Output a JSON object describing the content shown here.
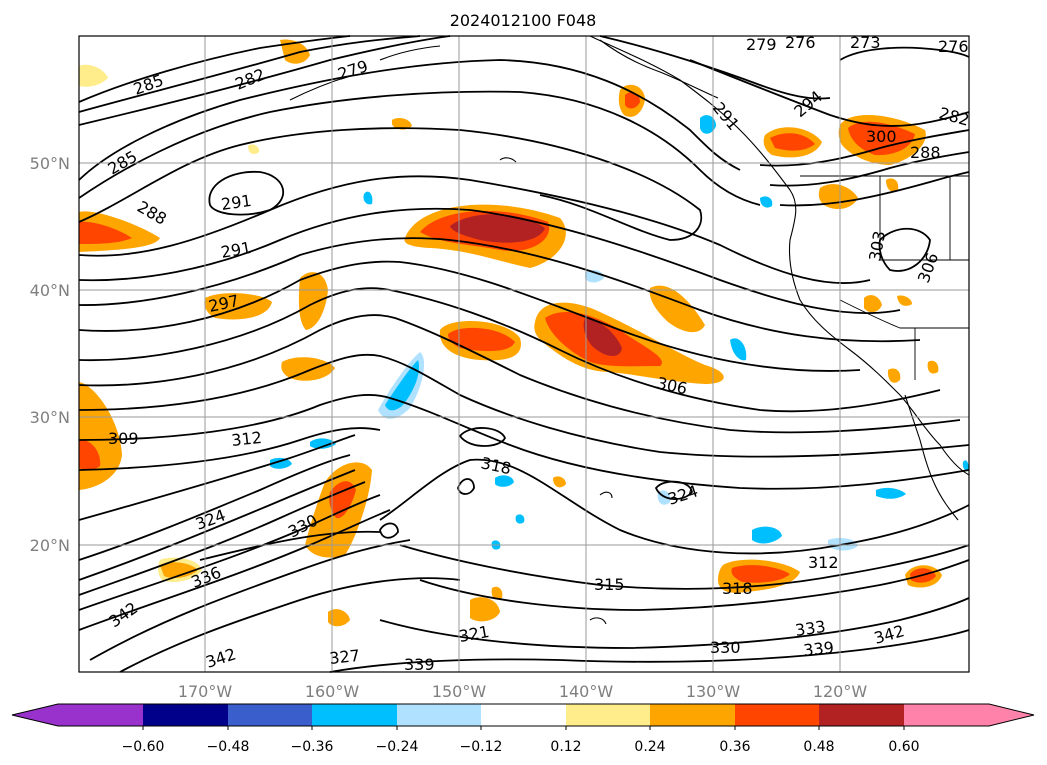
{
  "title": "2024012100 F048",
  "lat_labels": [
    "50°N",
    "40°N",
    "30°N",
    "20°N"
  ],
  "lon_labels": [
    "170°W",
    "160°W",
    "150°W",
    "140°W",
    "130°W",
    "120°W"
  ],
  "contour_labels": [
    "285",
    "282",
    "279",
    "276",
    "273",
    "285",
    "288",
    "291",
    "291",
    "297",
    "309",
    "312",
    "318",
    "324",
    "324",
    "306",
    "315",
    "318",
    "312",
    "330",
    "321",
    "333",
    "336",
    "339",
    "342",
    "342",
    "330",
    "327",
    "339",
    "342",
    "303",
    "306",
    "291",
    "294",
    "300",
    "288",
    "279",
    "282",
    "276"
  ],
  "colorbar": {
    "ticks": [
      "−0.60",
      "−0.48",
      "−0.36",
      "−0.24",
      "−0.12",
      "0.12",
      "0.24",
      "0.36",
      "0.48",
      "0.60"
    ],
    "colors": [
      "#9932cc",
      "#00008b",
      "#3a5fcd",
      "#00bfff",
      "#b0e2ff",
      "#ffffff",
      "#ffec8b",
      "#ffa500",
      "#ff4500",
      "#b22222",
      "#ff82ab"
    ]
  }
}
